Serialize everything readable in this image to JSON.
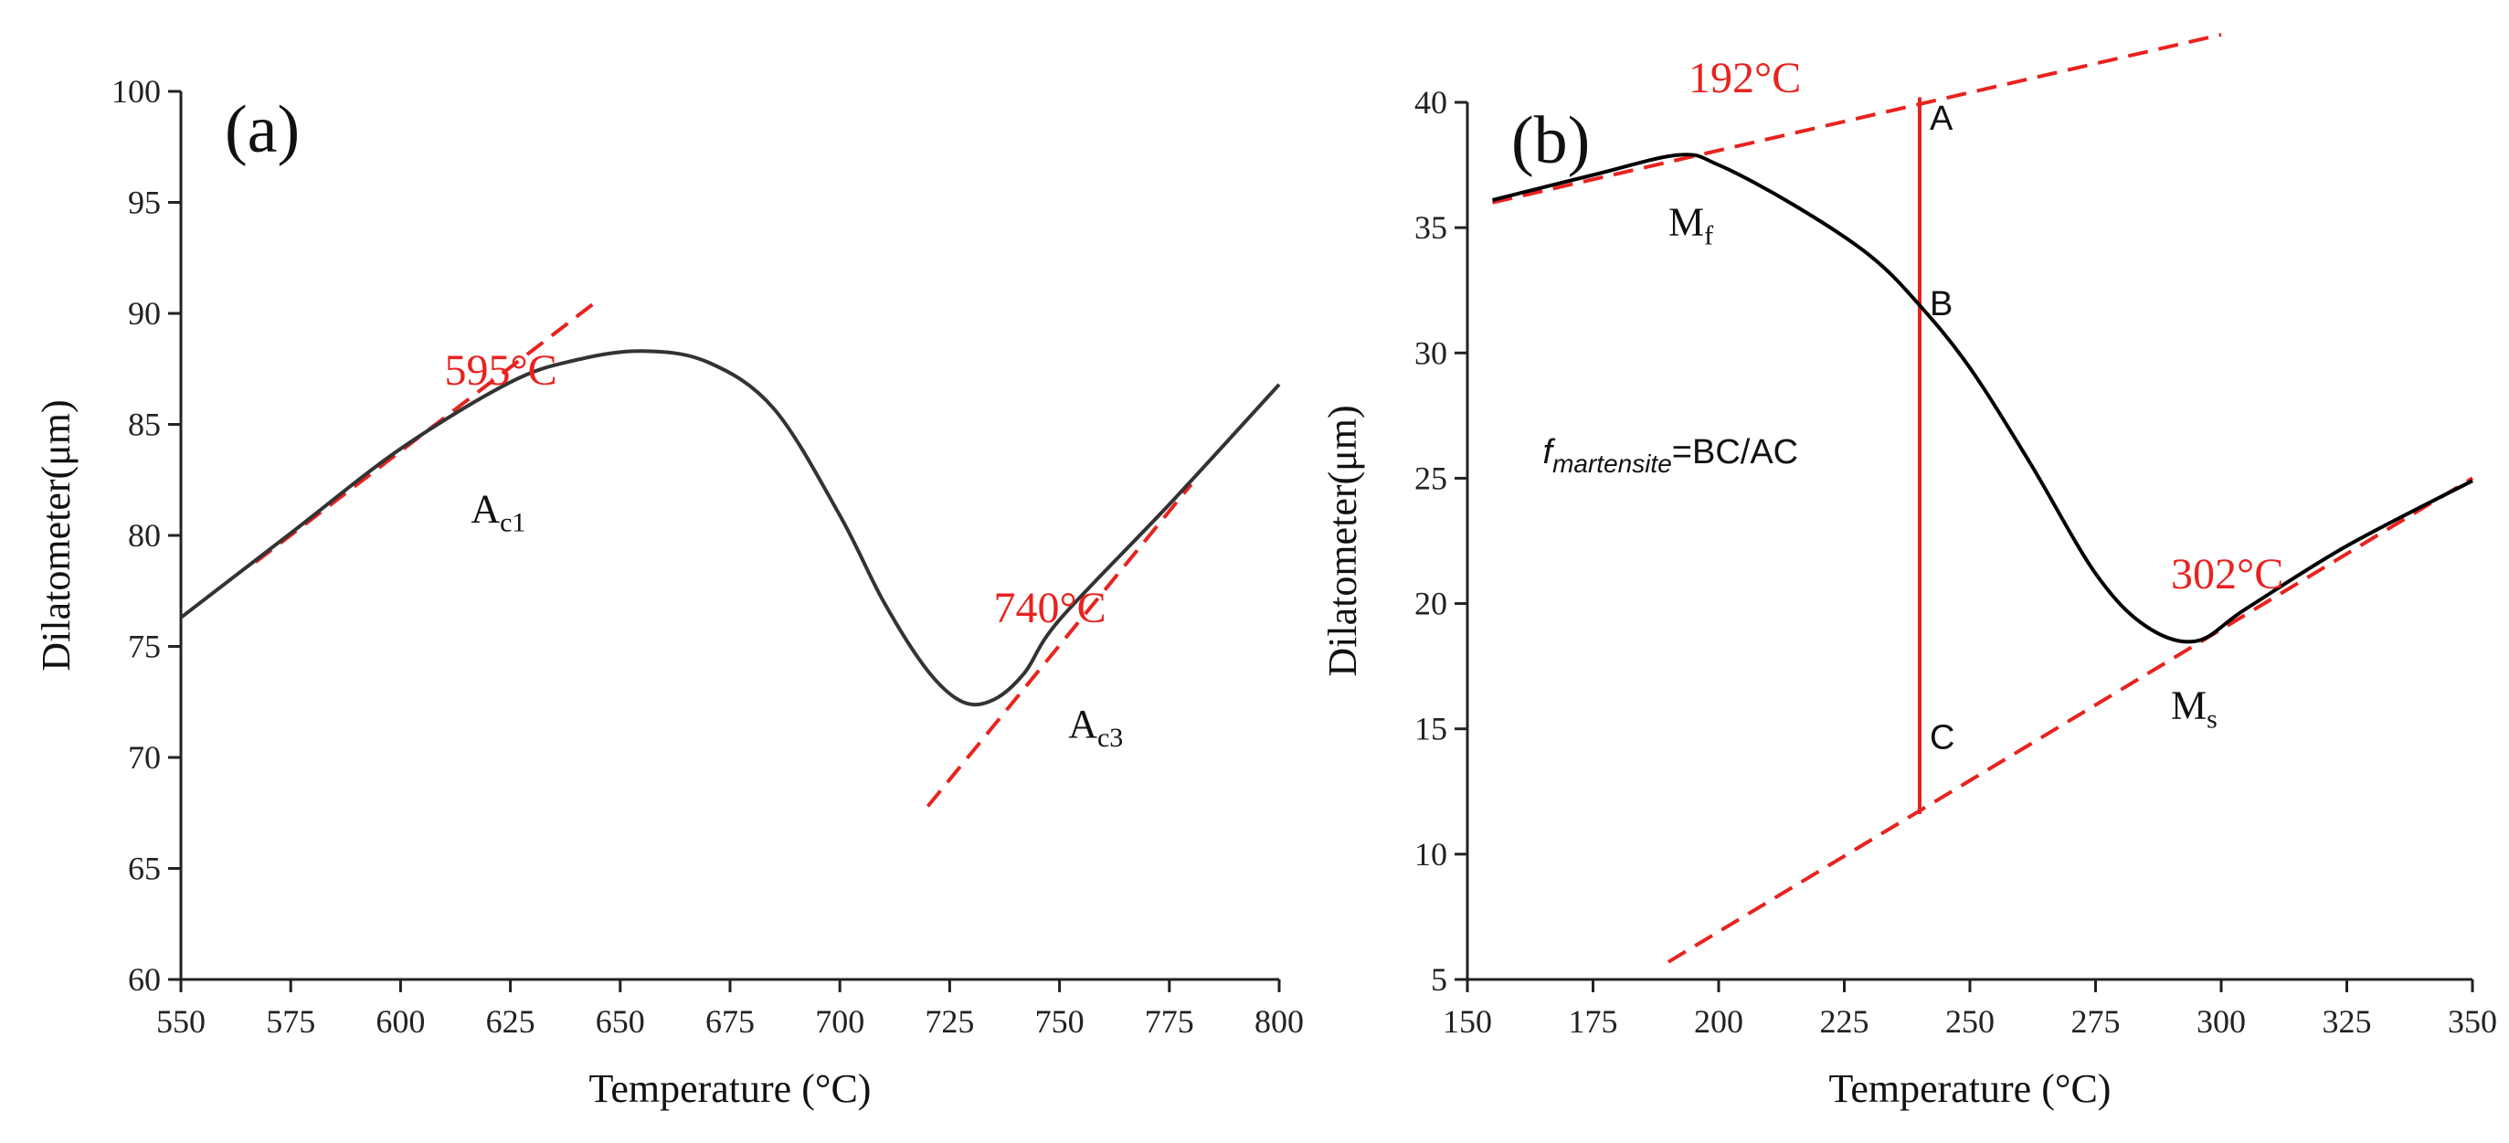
{
  "chart_data": [
    {
      "type": "line",
      "panel_label": "(a)",
      "xlabel": "Temperature (°C)",
      "ylabel": "Dilatometer(μm)",
      "xlim": [
        550,
        800
      ],
      "ylim": [
        60,
        100
      ],
      "xticks": [
        550,
        575,
        600,
        625,
        650,
        675,
        700,
        725,
        750,
        775,
        800
      ],
      "yticks": [
        60,
        65,
        70,
        75,
        80,
        85,
        90,
        95,
        100
      ],
      "series": [
        {
          "color": "#333333",
          "x": [
            550,
            575,
            600,
            625,
            640,
            655,
            670,
            685,
            700,
            710,
            720,
            728,
            735,
            742,
            750,
            775,
            800
          ],
          "y": [
            76.3,
            80.1,
            83.9,
            86.9,
            87.9,
            88.3,
            87.8,
            85.7,
            80.9,
            77.0,
            73.9,
            72.5,
            72.6,
            73.8,
            76.2,
            81.4,
            86.8
          ]
        }
      ],
      "tangents": [
        {
          "color": "#e8231f",
          "x": [
            567,
            645
          ],
          "y": [
            78.8,
            90.6
          ]
        },
        {
          "color": "#e8231f",
          "x": [
            720,
            780
          ],
          "y": [
            67.8,
            82.3
          ]
        }
      ],
      "annotations": [
        {
          "text": "595°C",
          "color": "#e8231f",
          "x": 610,
          "y": 86.8
        },
        {
          "text": "740°C",
          "color": "#e8231f",
          "x": 735,
          "y": 76.1
        },
        {
          "text": "A",
          "sub": "c1",
          "color": "#111111",
          "x": 616,
          "y": 80.6
        },
        {
          "text": "A",
          "sub": "c3",
          "color": "#111111",
          "x": 752,
          "y": 70.9
        }
      ]
    },
    {
      "type": "line",
      "panel_label": "(b)",
      "xlabel": "Temperature (°C)",
      "ylabel": "Dilatometer(μm)",
      "xlim": [
        150,
        350
      ],
      "ylim": [
        5,
        40
      ],
      "xticks": [
        150,
        175,
        200,
        225,
        250,
        275,
        300,
        325,
        350
      ],
      "yticks": [
        5,
        10,
        15,
        20,
        25,
        30,
        35,
        40
      ],
      "series": [
        {
          "color": "#000000",
          "x": [
            155,
            175,
            192,
            200,
            215,
            230,
            240,
            250,
            262,
            275,
            285,
            295,
            305,
            325,
            350
          ],
          "y": [
            36.1,
            37.1,
            37.9,
            37.5,
            35.9,
            33.9,
            31.9,
            29.4,
            25.6,
            21.2,
            19.1,
            18.5,
            19.8,
            22.3,
            24.9
          ]
        }
      ],
      "tangents": [
        {
          "color": "#e8231f",
          "x": [
            155,
            300
          ],
          "y": [
            36.0,
            42.7
          ]
        },
        {
          "color": "#e8231f",
          "x": [
            190,
            350
          ],
          "y": [
            5.7,
            25.0
          ]
        },
        {
          "color": "#e8231f",
          "x": [
            240,
            240
          ],
          "y": [
            11.6,
            40.2
          ],
          "solid": true
        }
      ],
      "annotations": [
        {
          "text": "192°C",
          "color": "#e8231f",
          "x": 194,
          "y": 40.4
        },
        {
          "text": "302°C",
          "color": "#e8231f",
          "x": 290,
          "y": 20.6
        },
        {
          "text": "M",
          "sub": "f",
          "color": "#111111",
          "x": 190,
          "y": 34.7
        },
        {
          "text": "M",
          "sub": "s",
          "color": "#111111",
          "x": 290,
          "y": 15.4
        },
        {
          "text": "A",
          "color": "#111111",
          "x": 242,
          "y": 38.9
        },
        {
          "text": "B",
          "color": "#111111",
          "x": 242,
          "y": 31.5
        },
        {
          "text": "C",
          "color": "#111111",
          "x": 242,
          "y": 14.2
        }
      ],
      "formula": {
        "italic": "f",
        "sub": "martensite",
        "rest": "=BC/AC",
        "x": 165,
        "y": 25.6
      }
    }
  ]
}
